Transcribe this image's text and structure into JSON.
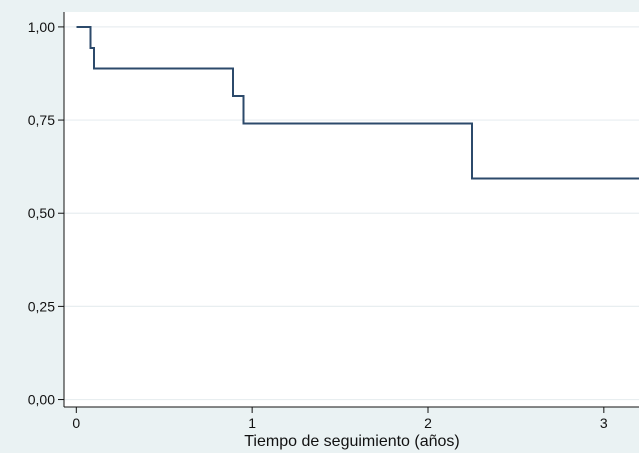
{
  "chart_data": {
    "type": "line",
    "title": "",
    "xlabel": "Tiempo de seguimiento (años)",
    "ylabel": "",
    "xlim": [
      -0.07,
      3.2
    ],
    "ylim": [
      -0.02,
      1.04
    ],
    "x_ticks": [
      {
        "value": 0,
        "label": "0"
      },
      {
        "value": 1,
        "label": "1"
      },
      {
        "value": 2,
        "label": "2"
      },
      {
        "value": 3,
        "label": "3"
      }
    ],
    "y_ticks": [
      {
        "value": 0,
        "label": "0,00"
      },
      {
        "value": 0.25,
        "label": "0,25"
      },
      {
        "value": 0.5,
        "label": "0,50"
      },
      {
        "value": 0.75,
        "label": "0,75"
      },
      {
        "value": 1,
        "label": "1,00"
      }
    ],
    "grid": "horizontal",
    "legend": "none",
    "series": [
      {
        "step": "post",
        "color": "#2c4a6b",
        "x": [
          0,
          0.08,
          0.1,
          0.89,
          0.95,
          2.25,
          3.2
        ],
        "y": [
          1.0,
          0.944,
          0.889,
          0.815,
          0.741,
          0.593,
          0.593
        ]
      }
    ],
    "colors": {
      "outer_background": "#eaf2f3",
      "plot_background": "#ffffff",
      "gridline": "#e8eef0",
      "axis": "#111111"
    }
  }
}
